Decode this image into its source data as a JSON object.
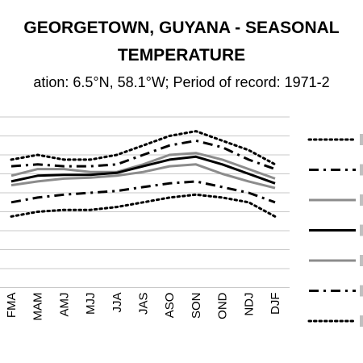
{
  "title_lines": [
    "GEORGETOWN, GUYANA - SEASONAL",
    "TEMPERATURE"
  ],
  "subtitle": "ation: 6.5°N, 58.1°W; Period of record: 1971-2",
  "colors": {
    "grid": "#c8c8c8",
    "black": "#000000",
    "gray": "#8c8c8c"
  },
  "chart_data": {
    "type": "line",
    "title": "GEORGETOWN, GUYANA - SEASONAL TEMPERATURE",
    "subtitle": "ation: 6.5°N, 58.1°W; Period of record: 1971-2",
    "categories": [
      "FMA",
      "MAM",
      "AMJ",
      "MJJ",
      "JJA",
      "JAS",
      "ASO",
      "SON",
      "OND",
      "NDJ",
      "DJF"
    ],
    "xlabel": "",
    "ylabel": "",
    "y_units_note": "relative plot position (0 = bottom gridline, 9 = top gridline); y-axis tick labels are not visible",
    "ylim": [
      0,
      9
    ],
    "grid": true,
    "gridlines_count": 10,
    "legend_placement": "right",
    "series": [
      {
        "style": "dotted",
        "color": "black",
        "values": [
          6.75,
          7.0,
          6.75,
          6.75,
          7.0,
          7.5,
          8.0,
          8.25,
          7.75,
          7.25,
          6.5
        ]
      },
      {
        "style": "dashdot",
        "color": "black",
        "values": [
          6.4,
          6.5,
          6.4,
          6.4,
          6.5,
          7.0,
          7.5,
          7.75,
          7.4,
          6.75,
          6.25
        ]
      },
      {
        "style": "solid",
        "color": "gray",
        "values": [
          5.9,
          6.25,
          6.25,
          6.1,
          6.1,
          6.5,
          7.0,
          7.1,
          6.75,
          6.25,
          5.75
        ]
      },
      {
        "style": "solid",
        "color": "black",
        "values": [
          5.6,
          5.9,
          5.95,
          5.95,
          6.05,
          6.4,
          6.75,
          6.9,
          6.5,
          6.0,
          5.5
        ]
      },
      {
        "style": "solid",
        "color": "gray",
        "values": [
          5.4,
          5.6,
          5.75,
          5.8,
          5.9,
          6.1,
          6.4,
          6.5,
          6.0,
          5.6,
          5.25
        ]
      },
      {
        "style": "dashdot",
        "color": "black",
        "values": [
          4.5,
          4.75,
          4.9,
          5.0,
          5.1,
          5.3,
          5.5,
          5.6,
          5.3,
          5.0,
          4.5
        ]
      },
      {
        "style": "dotted",
        "color": "black",
        "values": [
          3.75,
          4.0,
          4.1,
          4.1,
          4.25,
          4.5,
          4.75,
          4.9,
          4.75,
          4.5,
          3.75
        ]
      }
    ]
  }
}
